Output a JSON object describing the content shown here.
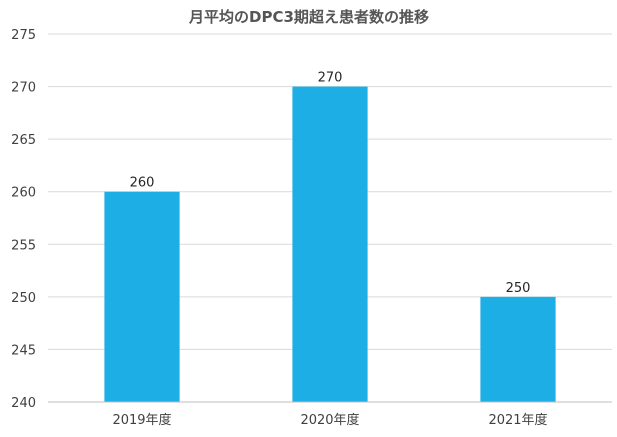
{
  "chart_data": {
    "type": "bar",
    "title": "月平均のDPC3期超え患者数の推移",
    "xlabel": "",
    "ylabel": "",
    "categories": [
      "2019年度",
      "2020年度",
      "2021年度"
    ],
    "values": [
      260,
      270,
      250
    ],
    "data_labels": [
      "260",
      "270",
      "250"
    ],
    "ylim": [
      240,
      275
    ],
    "yticks": [
      240,
      245,
      250,
      255,
      260,
      265,
      270,
      275
    ],
    "ytick_labels": [
      "240",
      "245",
      "250",
      "255",
      "260",
      "265",
      "270",
      "275"
    ],
    "grid": true,
    "legend": "none",
    "bar_color": "#1eaee6"
  }
}
